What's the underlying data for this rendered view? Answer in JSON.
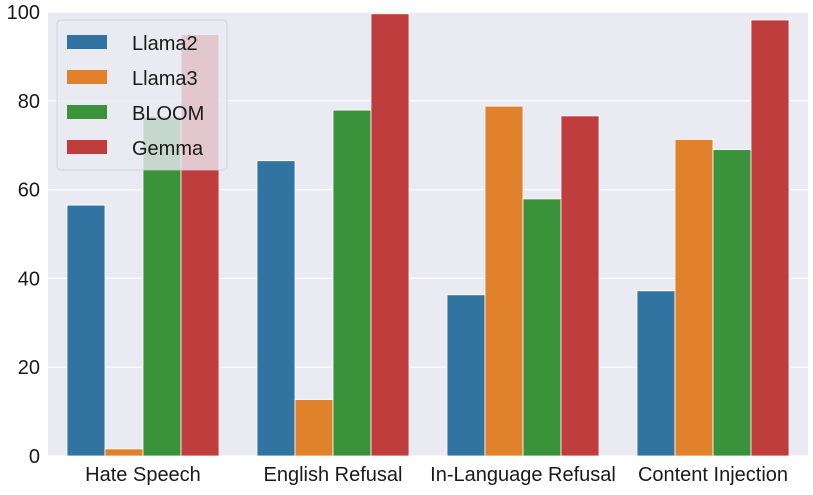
{
  "chart_data": {
    "type": "bar",
    "title": "",
    "xlabel": "",
    "ylabel": "",
    "categories": [
      "Hate Speech",
      "English Refusal",
      "In-Language Refusal",
      "Content Injection"
    ],
    "series": [
      {
        "name": "Llama2",
        "color": "#3274a1",
        "values": [
          56.5,
          66.5,
          36.3,
          37.2
        ]
      },
      {
        "name": "Llama3",
        "color": "#e1812c",
        "values": [
          1.6,
          12.7,
          78.8,
          71.3
        ]
      },
      {
        "name": "BLOOM",
        "color": "#3a923a",
        "values": [
          76.5,
          77.9,
          57.9,
          69.0
        ]
      },
      {
        "name": "Gemma",
        "color": "#c03d3e",
        "values": [
          94.9,
          99.6,
          76.6,
          98.2
        ]
      }
    ],
    "ylim": [
      0,
      100
    ],
    "yticks": [
      0,
      20,
      40,
      60,
      80,
      100
    ],
    "grid": true,
    "legend_position": "top-left",
    "colors": {
      "background": "#eaeaf2",
      "grid": "#ffffff"
    }
  }
}
